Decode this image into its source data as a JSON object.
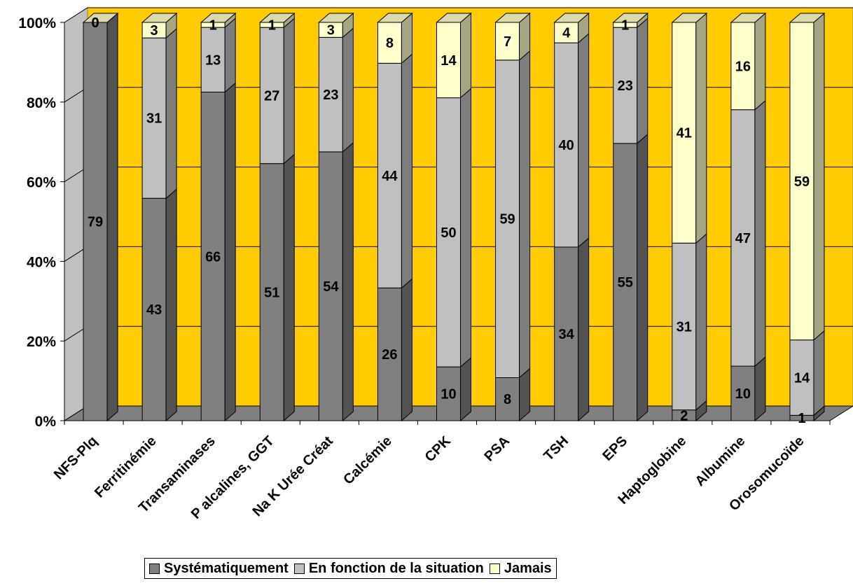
{
  "chart_data": {
    "type": "bar",
    "stacked": "percent",
    "three_d": true,
    "categories": [
      "NFS-Plq",
      "Ferritinémie",
      "Transaminases",
      "P alcalines, GGT",
      "Na K Urée Créat",
      "Calcémie",
      "CPK",
      "PSA",
      "TSH",
      "EPS",
      "Haptoglobine",
      "Albumine",
      "Orosomucoïde"
    ],
    "series": [
      {
        "name": "Systématiquement",
        "color": "#808080",
        "values": [
          79,
          43,
          66,
          51,
          54,
          26,
          10,
          8,
          34,
          55,
          2,
          10,
          1
        ]
      },
      {
        "name": "En fonction de la situation",
        "color": "#c0c0c0",
        "values": [
          0,
          31,
          13,
          27,
          23,
          44,
          50,
          59,
          40,
          23,
          31,
          47,
          14
        ]
      },
      {
        "name": "Jamais",
        "color": "#ffffcc",
        "values": [
          0,
          3,
          1,
          1,
          3,
          8,
          14,
          7,
          4,
          1,
          41,
          16,
          59
        ]
      }
    ],
    "y_ticks": [
      "0%",
      "20%",
      "40%",
      "60%",
      "80%",
      "100%"
    ],
    "ylim": [
      0,
      100
    ],
    "grid": true,
    "wall_color": "#ffcc00",
    "floor_color": "#808080",
    "legend_position": "bottom"
  }
}
